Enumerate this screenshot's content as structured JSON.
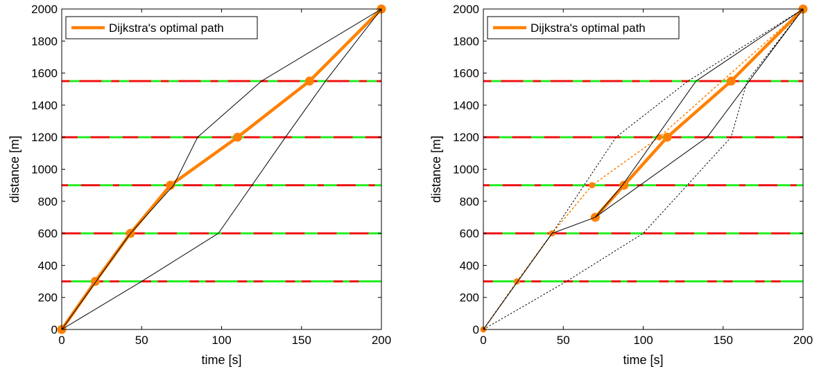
{
  "chart_data": [
    {
      "type": "line",
      "xlabel": "time [s]",
      "ylabel": "distance [m]",
      "xlim": [
        0,
        200
      ],
      "ylim": [
        0,
        2000
      ],
      "xticks": [
        0,
        50,
        100,
        150,
        200
      ],
      "yticks": [
        0,
        200,
        400,
        600,
        800,
        1000,
        1200,
        1400,
        1600,
        1800,
        2000
      ],
      "grid": false,
      "legend": {
        "position": "top-left",
        "entries": [
          "Dijkstra's optimal path"
        ]
      },
      "signals": {
        "distances": [
          300,
          600,
          900,
          1200,
          1550
        ],
        "colors": [
          "red",
          "green"
        ],
        "segments": [
          [
            [
              0,
              0.3
            ],
            [
              0.3,
              1
            ],
            [
              1,
              1.3
            ],
            [
              1.3,
              1.5
            ]
          ],
          [
            [
              0,
              0.6
            ],
            [
              0.6,
              1
            ],
            [
              1,
              1.6
            ],
            [
              1.6,
              2
            ]
          ],
          [
            [
              0,
              0.2
            ],
            [
              0.2,
              0.6
            ],
            [
              0.6,
              1.2
            ],
            [
              1.2,
              1.6
            ]
          ],
          [
            [
              0,
              0.5
            ],
            [
              0.5,
              0.9
            ],
            [
              0.9,
              1.5
            ],
            [
              1.5,
              1.9
            ]
          ],
          [
            [
              0,
              0.25
            ],
            [
              0.25,
              0.55
            ],
            [
              0.55,
              1.25
            ],
            [
              1.25,
              1.55
            ]
          ]
        ]
      },
      "series": [
        {
          "name": "Dijkstra's optimal path",
          "x": [
            0,
            21,
            43,
            68,
            110,
            155,
            200
          ],
          "y": [
            0,
            300,
            600,
            900,
            1200,
            1550,
            2000
          ],
          "color": "#ff8000",
          "style": "solid-thick-markers"
        },
        {
          "x": [
            0,
            43,
            70,
            85,
            125,
            200
          ],
          "y": [
            0,
            600,
            900,
            1200,
            1550,
            2000
          ],
          "color": "#000000",
          "style": "solid-thin"
        },
        {
          "x": [
            0,
            50,
            98,
            140,
            165,
            200
          ],
          "y": [
            0,
            300,
            600,
            1200,
            1550,
            2000
          ],
          "color": "#000000",
          "style": "solid-thin"
        }
      ]
    },
    {
      "type": "line",
      "xlabel": "time [s]",
      "ylabel": "distance [m]",
      "xlim": [
        0,
        200
      ],
      "ylim": [
        0,
        2000
      ],
      "xticks": [
        0,
        50,
        100,
        150,
        200
      ],
      "yticks": [
        0,
        200,
        400,
        600,
        800,
        1000,
        1200,
        1400,
        1600,
        1800,
        2000
      ],
      "grid": false,
      "legend": {
        "position": "top-left",
        "entries": [
          "Dijkstra's optimal path"
        ]
      },
      "signals": {
        "distances": [
          300,
          600,
          900,
          1200,
          1550
        ],
        "colors": [
          "red",
          "green"
        ],
        "segments": [
          [
            [
              0,
              0.3
            ],
            [
              0.3,
              1
            ],
            [
              1,
              1.3
            ],
            [
              1.3,
              1.5
            ]
          ],
          [
            [
              0,
              0.6
            ],
            [
              0.6,
              1
            ],
            [
              1,
              1.6
            ],
            [
              1.6,
              2
            ]
          ],
          [
            [
              0,
              0.2
            ],
            [
              0.2,
              0.6
            ],
            [
              0.6,
              1.2
            ],
            [
              1.2,
              1.6
            ]
          ],
          [
            [
              0,
              0.5
            ],
            [
              0.5,
              0.9
            ],
            [
              0.9,
              1.5
            ],
            [
              1.5,
              1.9
            ]
          ],
          [
            [
              0,
              0.25
            ],
            [
              0.25,
              0.55
            ],
            [
              0.55,
              1.25
            ],
            [
              1.25,
              1.55
            ]
          ]
        ]
      },
      "series": [
        {
          "name": "Dijkstra's optimal path",
          "x": [
            70,
            88,
            115,
            155,
            200
          ],
          "y": [
            700,
            900,
            1200,
            1550,
            2000
          ],
          "color": "#ff8000",
          "style": "solid-thick-markers"
        },
        {
          "x": [
            0,
            21,
            43,
            68,
            110,
            200
          ],
          "y": [
            0,
            300,
            600,
            900,
            1200,
            2000
          ],
          "color": "#ff8000",
          "style": "dotted-small-markers"
        },
        {
          "x": [
            0,
            43,
            70,
            87,
            133,
            200
          ],
          "y": [
            0,
            600,
            700,
            900,
            1550,
            2000
          ],
          "color": "#000000",
          "style": "solid-thin"
        },
        {
          "x": [
            70,
            140,
            200
          ],
          "y": [
            700,
            1200,
            2000
          ],
          "color": "#000000",
          "style": "solid-thin"
        },
        {
          "x": [
            0,
            43,
            83,
            128,
            200
          ],
          "y": [
            0,
            600,
            1200,
            1550,
            2000
          ],
          "color": "#000000",
          "style": "dotted-thin"
        },
        {
          "x": [
            0,
            52,
            100,
            155,
            165,
            200
          ],
          "y": [
            0,
            300,
            600,
            1200,
            1550,
            2000
          ],
          "color": "#000000",
          "style": "dotted-thin"
        }
      ]
    }
  ]
}
